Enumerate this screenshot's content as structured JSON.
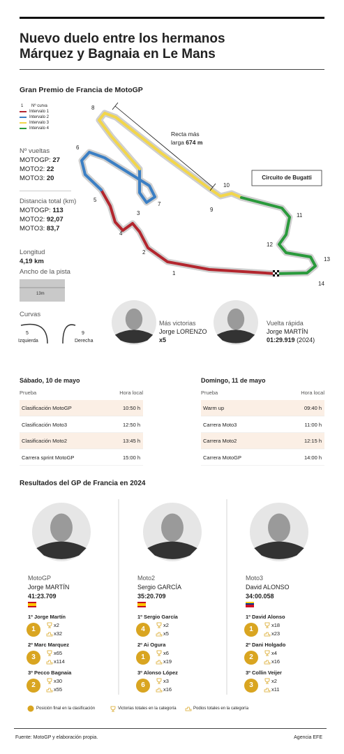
{
  "header": {
    "title_lines": [
      "Nuevo duelo entre los hermanos",
      "Márquez y Bagnaia en Le Mans"
    ]
  },
  "circuit": {
    "title": "Gran Premio de Francia de MotoGP",
    "legend": {
      "curve_sample": "1",
      "curve_label": "Nº curva",
      "intervals": [
        "Intervalo 1",
        "Intervalo 2",
        "Intervalo 3",
        "Intervalo 4"
      ]
    },
    "laps": {
      "label": "Nº vueltas",
      "rows": [
        [
          "MOTOGP:",
          "27"
        ],
        [
          "MOTO2:",
          "22"
        ],
        [
          "MOTO3:",
          "20"
        ]
      ]
    },
    "distance": {
      "label": "Distancia total (km)",
      "rows": [
        [
          "MOTOGP:",
          "113"
        ],
        [
          "MOTO2:",
          "92,07"
        ],
        [
          "MOTO3:",
          "83,7"
        ]
      ]
    },
    "length": {
      "label": "Longitud",
      "value": "4,19 km"
    },
    "width": {
      "label": "Ancho de la pista",
      "value": "13m"
    },
    "curves": {
      "label": "Curvas",
      "left": {
        "count": "5",
        "label": "Izquierda"
      },
      "right": {
        "count": "9",
        "label": "Derecha"
      }
    },
    "name": "Circuito de Bugatti",
    "straight": {
      "label_lines": [
        "Recta más",
        "larga"
      ],
      "value": "674 m"
    },
    "turns": [
      "1",
      "2",
      "3",
      "4",
      "5",
      "6",
      "7",
      "8",
      "9",
      "10",
      "11",
      "12",
      "13",
      "14"
    ],
    "most_wins": {
      "label": "Más victorias",
      "rider": "Jorge LORENZO",
      "value": "x5"
    },
    "fastest_lap": {
      "label": "Vuelta rápida",
      "rider": "Jorge MARTÍN",
      "time": "01:29.919",
      "year": "(2024)"
    }
  },
  "schedule": [
    {
      "day": "Sábado, 10 de mayo",
      "headers": [
        "Prueba",
        "Hora local"
      ],
      "rows": [
        [
          "Clasificación MotoGP",
          "10:50 h"
        ],
        [
          "Clasificación Moto3",
          "12:50 h"
        ],
        [
          "Clasificación Moto2",
          "13:45 h"
        ],
        [
          "Carrera sprint MotoGP",
          "15:00 h"
        ]
      ]
    },
    {
      "day": "Domingo, 11 de mayo",
      "headers": [
        "Prueba",
        "Hora local"
      ],
      "rows": [
        [
          "Warm up",
          "09:40 h"
        ],
        [
          "Carrera Moto3",
          "11:00 h"
        ],
        [
          "Carrera Moto2",
          "12:15 h"
        ],
        [
          "Carrera MotoGP",
          "14:00 h"
        ]
      ]
    }
  ],
  "results": {
    "title": "Resultados del GP de Francia en 2024",
    "columns": [
      {
        "category": "MotoGP",
        "winner": "Jorge MARTÍN",
        "time": "41:23.709",
        "podium": [
          {
            "rider": "1º Jorge Martín",
            "position": "1",
            "wins": "x2",
            "podiums": "x32"
          },
          {
            "rider": "2º Marc Marquez",
            "position": "3",
            "wins": "x65",
            "podiums": "x114"
          },
          {
            "rider": "3º Pecco Bagnaia",
            "position": "2",
            "wins": "x30",
            "podiums": "x55"
          }
        ]
      },
      {
        "category": "Moto2",
        "winner": "Sergio GARCÍA",
        "time": "35:20.709",
        "podium": [
          {
            "rider": "1º Sergio García",
            "position": "4",
            "wins": "x2",
            "podiums": "x5"
          },
          {
            "rider": "2º Ai Ogura",
            "position": "1",
            "wins": "x6",
            "podiums": "x19"
          },
          {
            "rider": "3º Alonso López",
            "position": "6",
            "wins": "x3",
            "podiums": "x16"
          }
        ]
      },
      {
        "category": "Moto3",
        "winner": "David ALONSO",
        "time": "34:00.058",
        "podium": [
          {
            "rider": "1º David Alonso",
            "position": "1",
            "wins": "x18",
            "podiums": "x23"
          },
          {
            "rider": "2º Dani Holgado",
            "position": "2",
            "wins": "x4",
            "podiums": "x16"
          },
          {
            "rider": "3º Collin Veijer",
            "position": "3",
            "wins": "x2",
            "podiums": "x11"
          }
        ]
      }
    ],
    "legend": [
      "Posición final en la clasificación",
      "Victorias totales en la categoría",
      "Podios totales en la categoría"
    ]
  },
  "footer": {
    "source": "Fuente: MotoGP y elaboración propia.",
    "agency": "Agencia EFE"
  }
}
